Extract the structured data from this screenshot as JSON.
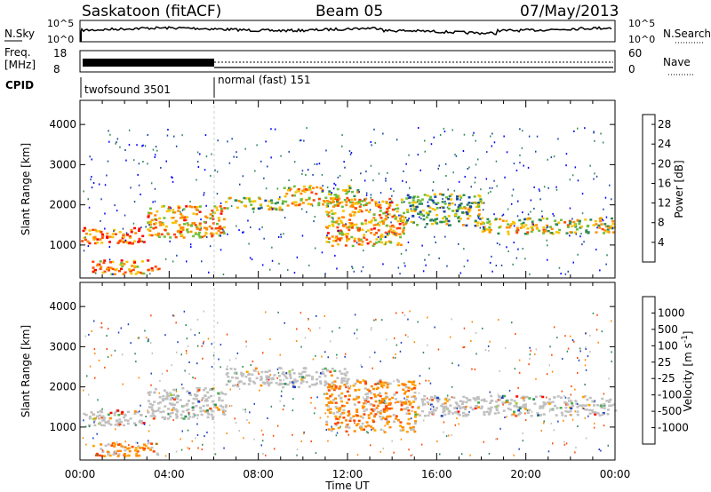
{
  "header": {
    "station": "Saskatoon (fitACF)",
    "beam": "Beam 05",
    "date": "07/May/2013"
  },
  "nsky_panel": {
    "left_label": "N.Sky",
    "right_label": "N.Search",
    "left_ticks": [
      "10^5",
      "10^0"
    ],
    "right_ticks": [
      "10^5",
      "10^0"
    ]
  },
  "freq_panel": {
    "left_label_line1": "Freq.",
    "left_label_line2": "[MHz]",
    "left_ticks": [
      "18",
      "8"
    ],
    "right_label": "Nave",
    "right_ticks": [
      "60",
      "0"
    ]
  },
  "cpid": {
    "label": "CPID",
    "segments": [
      {
        "name": "twofsound 3501",
        "start_hour": 0,
        "end_hour": 6
      },
      {
        "name": "normal (fast) 151",
        "start_hour": 6,
        "end_hour": 24
      }
    ]
  },
  "chart_data": [
    {
      "type": "heatmap",
      "title": "",
      "xlabel": "Time UT",
      "ylabel": "Slant Range [km]",
      "x_ticks": [
        "00:00",
        "04:00",
        "08:00",
        "12:00",
        "16:00",
        "20:00",
        "00:00"
      ],
      "x_range_hours": [
        0,
        24
      ],
      "ylim": [
        180,
        4600
      ],
      "y_ticks": [
        1000,
        2000,
        3000,
        4000
      ],
      "colorbar": {
        "label": "Power [dB]",
        "ticks": [
          4,
          8,
          12,
          16,
          20,
          24,
          28
        ],
        "range": [
          0,
          30
        ],
        "colors": [
          "#0000ff",
          "#1c44a6",
          "#2e8b57",
          "#6bbf3a",
          "#f5c400",
          "#ff8c00",
          "#ff4500",
          "#ff0000"
        ]
      },
      "echo_bands": [
        {
          "start_hour": 0.0,
          "end_hour": 3.0,
          "range_km": [
            1050,
            1450
          ],
          "level_db": 24
        },
        {
          "start_hour": 0.5,
          "end_hour": 3.5,
          "range_km": [
            300,
            650
          ],
          "level_db": 22
        },
        {
          "start_hour": 3.0,
          "end_hour": 6.5,
          "range_km": [
            1200,
            2000
          ],
          "level_db": 20
        },
        {
          "start_hour": 6.5,
          "end_hour": 9.0,
          "range_km": [
            1900,
            2200
          ],
          "level_db": 14
        },
        {
          "start_hour": 9.0,
          "end_hour": 12.5,
          "range_km": [
            2000,
            2500
          ],
          "level_db": 18
        },
        {
          "start_hour": 11.0,
          "end_hour": 14.5,
          "range_km": [
            1000,
            2200
          ],
          "level_db": 20
        },
        {
          "start_hour": 14.5,
          "end_hour": 18.0,
          "range_km": [
            1500,
            2300
          ],
          "level_db": 12
        },
        {
          "start_hour": 18.0,
          "end_hour": 24.0,
          "range_km": [
            1300,
            1700
          ],
          "level_db": 16
        }
      ]
    },
    {
      "type": "heatmap",
      "title": "",
      "xlabel": "Time UT",
      "ylabel": "Slant Range [km]",
      "x_ticks": [
        "00:00",
        "04:00",
        "08:00",
        "12:00",
        "16:00",
        "20:00",
        "00:00"
      ],
      "x_range_hours": [
        0,
        24
      ],
      "ylim": [
        180,
        4600
      ],
      "y_ticks": [
        1000,
        2000,
        3000,
        4000
      ],
      "colorbar": {
        "label": "Velocity [m s^-1]",
        "ticks": [
          "1000",
          "500",
          "100",
          "25",
          "-25",
          "-100",
          "-500",
          "-1000"
        ],
        "colors": [
          "#2040c0",
          "#2e8b57",
          "#4caf50",
          "#9acd32",
          "#c0c0c0",
          "#ffa500",
          "#ff8c00",
          "#ff4500",
          "#ff0000"
        ]
      },
      "echo_bands": [
        {
          "start_hour": 0.0,
          "end_hour": 3.0,
          "range_km": [
            1050,
            1450
          ],
          "velocity": "ground scatter (grey)"
        },
        {
          "start_hour": 0.5,
          "end_hour": 3.5,
          "range_km": [
            300,
            650
          ],
          "velocity": "-100 to -500"
        },
        {
          "start_hour": 3.0,
          "end_hour": 6.5,
          "range_km": [
            1200,
            2000
          ],
          "velocity": "ground scatter (grey)"
        },
        {
          "start_hour": 6.5,
          "end_hour": 12.0,
          "range_km": [
            2000,
            2500
          ],
          "velocity": "ground scatter (grey)"
        },
        {
          "start_hour": 11.0,
          "end_hour": 15.0,
          "range_km": [
            900,
            2200
          ],
          "velocity": "-100 to -500"
        },
        {
          "start_hour": 15.0,
          "end_hour": 24.0,
          "range_km": [
            1300,
            1800
          ],
          "velocity": "ground scatter (grey)"
        }
      ]
    }
  ]
}
